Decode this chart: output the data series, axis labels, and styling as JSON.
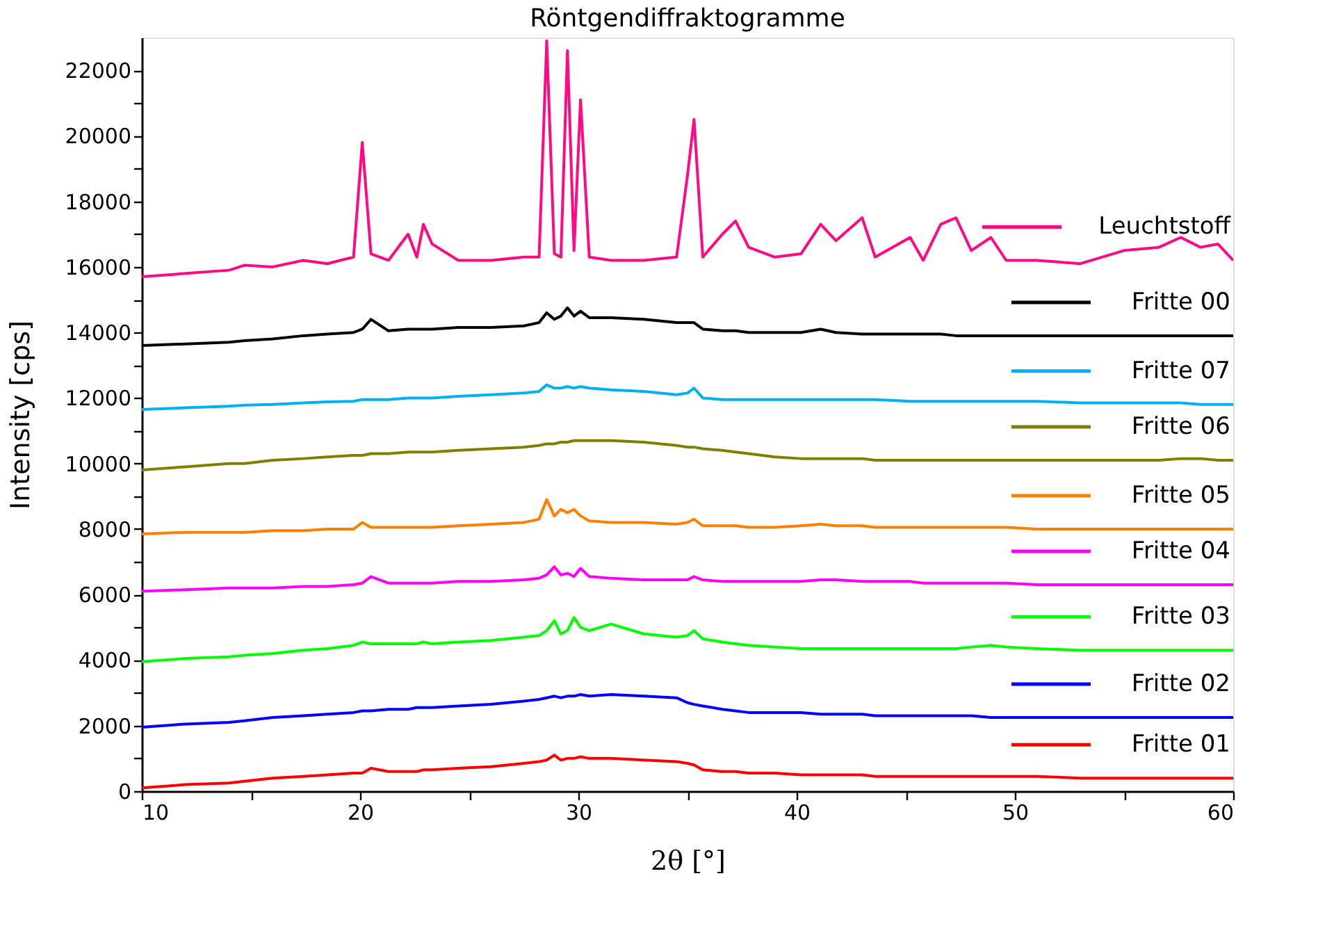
{
  "chart_data": {
    "type": "line",
    "title": "Röntgendiffraktogramme",
    "xlabel": "2θ [°]",
    "ylabel": "Intensity [cps]",
    "x": [
      10,
      12,
      14,
      14.7,
      16,
      17.4,
      18.5,
      19.7,
      20.1,
      20.5,
      21.3,
      22.2,
      22.6,
      22.9,
      23.3,
      24.5,
      26,
      27.5,
      28.2,
      28.55,
      28.9,
      29.2,
      29.5,
      29.8,
      30.1,
      30.5,
      31.5,
      33,
      34.5,
      35.0,
      35.3,
      35.7,
      36.6,
      37.2,
      37.8,
      39,
      40.2,
      41.1,
      41.8,
      43,
      43.6,
      45.2,
      45.8,
      46.6,
      47.3,
      48,
      48.9,
      49.6,
      51,
      53,
      55,
      56.6,
      57.6,
      58.5,
      59.3,
      60
    ],
    "series": [
      {
        "name": "Leuchtstoff",
        "color": "#ff0a84",
        "values": [
          15700,
          15800,
          15900,
          16050,
          16000,
          16200,
          16100,
          16300,
          19800,
          16400,
          16200,
          17000,
          16300,
          17300,
          16700,
          16200,
          16200,
          16300,
          16300,
          22900,
          16400,
          16300,
          22600,
          16500,
          21100,
          16300,
          16200,
          16200,
          16300,
          18800,
          20500,
          16300,
          17000,
          17400,
          16600,
          16300,
          16400,
          17300,
          16800,
          17500,
          16300,
          16900,
          16200,
          17300,
          17500,
          16500,
          16900,
          16200,
          16200,
          16100,
          16500,
          16600,
          16900,
          16600,
          16700,
          16200
        ]
      },
      {
        "name": "Fritte 00",
        "color": "#000000",
        "values": [
          13600,
          13650,
          13700,
          13750,
          13800,
          13900,
          13950,
          14000,
          14100,
          14400,
          14050,
          14100,
          14100,
          14100,
          14100,
          14150,
          14150,
          14200,
          14300,
          14600,
          14400,
          14500,
          14750,
          14500,
          14650,
          14450,
          14450,
          14400,
          14300,
          14300,
          14300,
          14100,
          14050,
          14050,
          14000,
          14000,
          14000,
          14100,
          14000,
          13950,
          13950,
          13950,
          13950,
          13950,
          13900,
          13900,
          13900,
          13900,
          13900,
          13900,
          13900,
          13900,
          13900,
          13900,
          13900,
          13900
        ]
      },
      {
        "name": "Fritte 07",
        "color": "#00b0f0",
        "values": [
          11650,
          11700,
          11750,
          11780,
          11800,
          11850,
          11880,
          11900,
          11950,
          11950,
          11950,
          12000,
          12000,
          12000,
          12000,
          12050,
          12100,
          12150,
          12200,
          12400,
          12300,
          12300,
          12350,
          12300,
          12350,
          12300,
          12250,
          12200,
          12100,
          12150,
          12300,
          12000,
          11950,
          11950,
          11950,
          11950,
          11950,
          11950,
          11950,
          11950,
          11950,
          11900,
          11900,
          11900,
          11900,
          11900,
          11900,
          11900,
          11900,
          11850,
          11850,
          11850,
          11850,
          11800,
          11800,
          11800
        ]
      },
      {
        "name": "Fritte 06",
        "color": "#808000",
        "values": [
          9800,
          9900,
          10000,
          10000,
          10100,
          10150,
          10200,
          10250,
          10250,
          10300,
          10300,
          10350,
          10350,
          10350,
          10350,
          10400,
          10450,
          10500,
          10550,
          10600,
          10600,
          10650,
          10650,
          10700,
          10700,
          10700,
          10700,
          10650,
          10550,
          10500,
          10500,
          10450,
          10400,
          10350,
          10300,
          10200,
          10150,
          10150,
          10150,
          10150,
          10100,
          10100,
          10100,
          10100,
          10100,
          10100,
          10100,
          10100,
          10100,
          10100,
          10100,
          10100,
          10150,
          10150,
          10100,
          10100
        ]
      },
      {
        "name": "Fritte 05",
        "color": "#ff8000",
        "values": [
          7850,
          7900,
          7900,
          7900,
          7950,
          7950,
          8000,
          8000,
          8200,
          8050,
          8050,
          8050,
          8050,
          8050,
          8050,
          8100,
          8150,
          8200,
          8300,
          8900,
          8400,
          8600,
          8500,
          8600,
          8400,
          8250,
          8200,
          8200,
          8150,
          8200,
          8300,
          8100,
          8100,
          8100,
          8050,
          8050,
          8100,
          8150,
          8100,
          8100,
          8050,
          8050,
          8050,
          8050,
          8050,
          8050,
          8050,
          8050,
          8000,
          8000,
          8000,
          8000,
          8000,
          8000,
          8000,
          8000
        ]
      },
      {
        "name": "Fritte 04",
        "color": "#ff00ff",
        "values": [
          6100,
          6150,
          6200,
          6200,
          6200,
          6250,
          6250,
          6300,
          6350,
          6550,
          6350,
          6350,
          6350,
          6350,
          6350,
          6400,
          6400,
          6450,
          6500,
          6600,
          6850,
          6600,
          6650,
          6550,
          6800,
          6550,
          6500,
          6450,
          6450,
          6450,
          6550,
          6450,
          6400,
          6400,
          6400,
          6400,
          6400,
          6450,
          6450,
          6400,
          6400,
          6400,
          6350,
          6350,
          6350,
          6350,
          6350,
          6350,
          6300,
          6300,
          6300,
          6300,
          6300,
          6300,
          6300,
          6300
        ]
      },
      {
        "name": "Fritte 03",
        "color": "#00ff00",
        "values": [
          3950,
          4050,
          4100,
          4150,
          4200,
          4300,
          4350,
          4450,
          4550,
          4500,
          4500,
          4500,
          4500,
          4550,
          4500,
          4550,
          4600,
          4700,
          4750,
          4900,
          5200,
          4800,
          4900,
          5300,
          5000,
          4900,
          5100,
          4800,
          4700,
          4750,
          4900,
          4650,
          4550,
          4500,
          4450,
          4400,
          4350,
          4350,
          4350,
          4350,
          4350,
          4350,
          4350,
          4350,
          4350,
          4400,
          4450,
          4400,
          4350,
          4300,
          4300,
          4300,
          4300,
          4300,
          4300,
          4300
        ]
      },
      {
        "name": "Fritte 02",
        "color": "#0000ff",
        "values": [
          1950,
          2050,
          2100,
          2150,
          2250,
          2300,
          2350,
          2400,
          2450,
          2450,
          2500,
          2500,
          2550,
          2550,
          2550,
          2600,
          2650,
          2750,
          2800,
          2850,
          2900,
          2850,
          2900,
          2900,
          2950,
          2900,
          2950,
          2900,
          2850,
          2700,
          2650,
          2600,
          2500,
          2450,
          2400,
          2400,
          2400,
          2350,
          2350,
          2350,
          2300,
          2300,
          2300,
          2300,
          2300,
          2300,
          2250,
          2250,
          2250,
          2250,
          2250,
          2250,
          2250,
          2250,
          2250,
          2250
        ]
      },
      {
        "name": "Fritte 01",
        "color": "#ff0000",
        "values": [
          100,
          200,
          250,
          300,
          400,
          450,
          500,
          550,
          550,
          700,
          600,
          600,
          600,
          650,
          650,
          700,
          750,
          850,
          900,
          950,
          1100,
          950,
          1000,
          1000,
          1050,
          1000,
          1000,
          950,
          900,
          850,
          800,
          650,
          600,
          600,
          550,
          550,
          500,
          500,
          500,
          500,
          450,
          450,
          450,
          450,
          450,
          450,
          450,
          450,
          450,
          400,
          400,
          400,
          400,
          400,
          400,
          400
        ]
      }
    ],
    "xlim": [
      10,
      60
    ],
    "xticks": [
      10,
      {
        "value": 15,
        "label": null
      },
      20,
      {
        "value": 25,
        "label": null
      },
      30,
      {
        "value": 35,
        "label": null
      },
      40,
      {
        "value": 45,
        "label": null
      },
      50,
      {
        "value": 55,
        "label": null
      },
      60
    ],
    "ylim": [
      0,
      23000
    ],
    "yticks": [
      0,
      {
        "value": 1000,
        "label": null
      },
      2000,
      {
        "value": 3000,
        "label": null
      },
      4000,
      {
        "value": 5000,
        "label": null
      },
      6000,
      {
        "value": 7000,
        "label": null
      },
      8000,
      {
        "value": 9000,
        "label": null
      },
      10000,
      {
        "value": 11000,
        "label": null
      },
      12000,
      {
        "value": 13000,
        "label": null
      },
      14000,
      {
        "value": 15000,
        "label": null
      },
      16000,
      {
        "value": 17000,
        "label": null
      },
      18000,
      {
        "value": 19000,
        "label": null
      },
      20000,
      {
        "value": 21000,
        "label": null
      },
      22000
    ],
    "grid": false,
    "legend": "right",
    "marker": "none",
    "line_style": "solid"
  }
}
